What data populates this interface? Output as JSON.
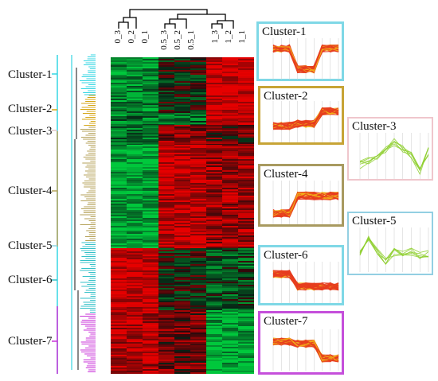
{
  "columns": [
    "0_3",
    "0_2",
    "0_1",
    "0.5_3",
    "0.5_2",
    "0.5_1",
    "1_3",
    "1_2",
    "1_1"
  ],
  "row_clusters": [
    {
      "label": "Cluster-1",
      "color": "#36d6e3"
    },
    {
      "label": "Cluster-2",
      "color": "#d4a514"
    },
    {
      "label": "Cluster-3",
      "color": "#e3c7c7"
    },
    {
      "label": "Cluster-4",
      "color": "#b5a25a"
    },
    {
      "label": "Cluster-5",
      "color": "#8fd4e0"
    },
    {
      "label": "Cluster-6",
      "color": "#35c1c8"
    },
    {
      "label": "Cluster-7",
      "color": "#c832d8"
    }
  ],
  "panels": [
    {
      "title": "Cluster-1",
      "border": "#7fd8e6",
      "line": "#e63c1e"
    },
    {
      "title": "Cluster-2",
      "border": "#c7a436",
      "line": "#e63c1e"
    },
    {
      "title": "Cluster-3",
      "border": "#efc6cc",
      "line": "#8ecf2e"
    },
    {
      "title": "Cluster-4",
      "border": "#a89a60",
      "line": "#e63c1e"
    },
    {
      "title": "Cluster-5",
      "border": "#93cfe2",
      "line": "#8ecf2e"
    },
    {
      "title": "Cluster-6",
      "border": "#7fd8e6",
      "line": "#e63c1e"
    },
    {
      "title": "Cluster-7",
      "border": "#c54fdb",
      "line": "#e63c1e"
    }
  ],
  "heatmap_colors": {
    "high": "#e0141a",
    "low": "#1fcf3c",
    "mid": "#000000"
  }
}
